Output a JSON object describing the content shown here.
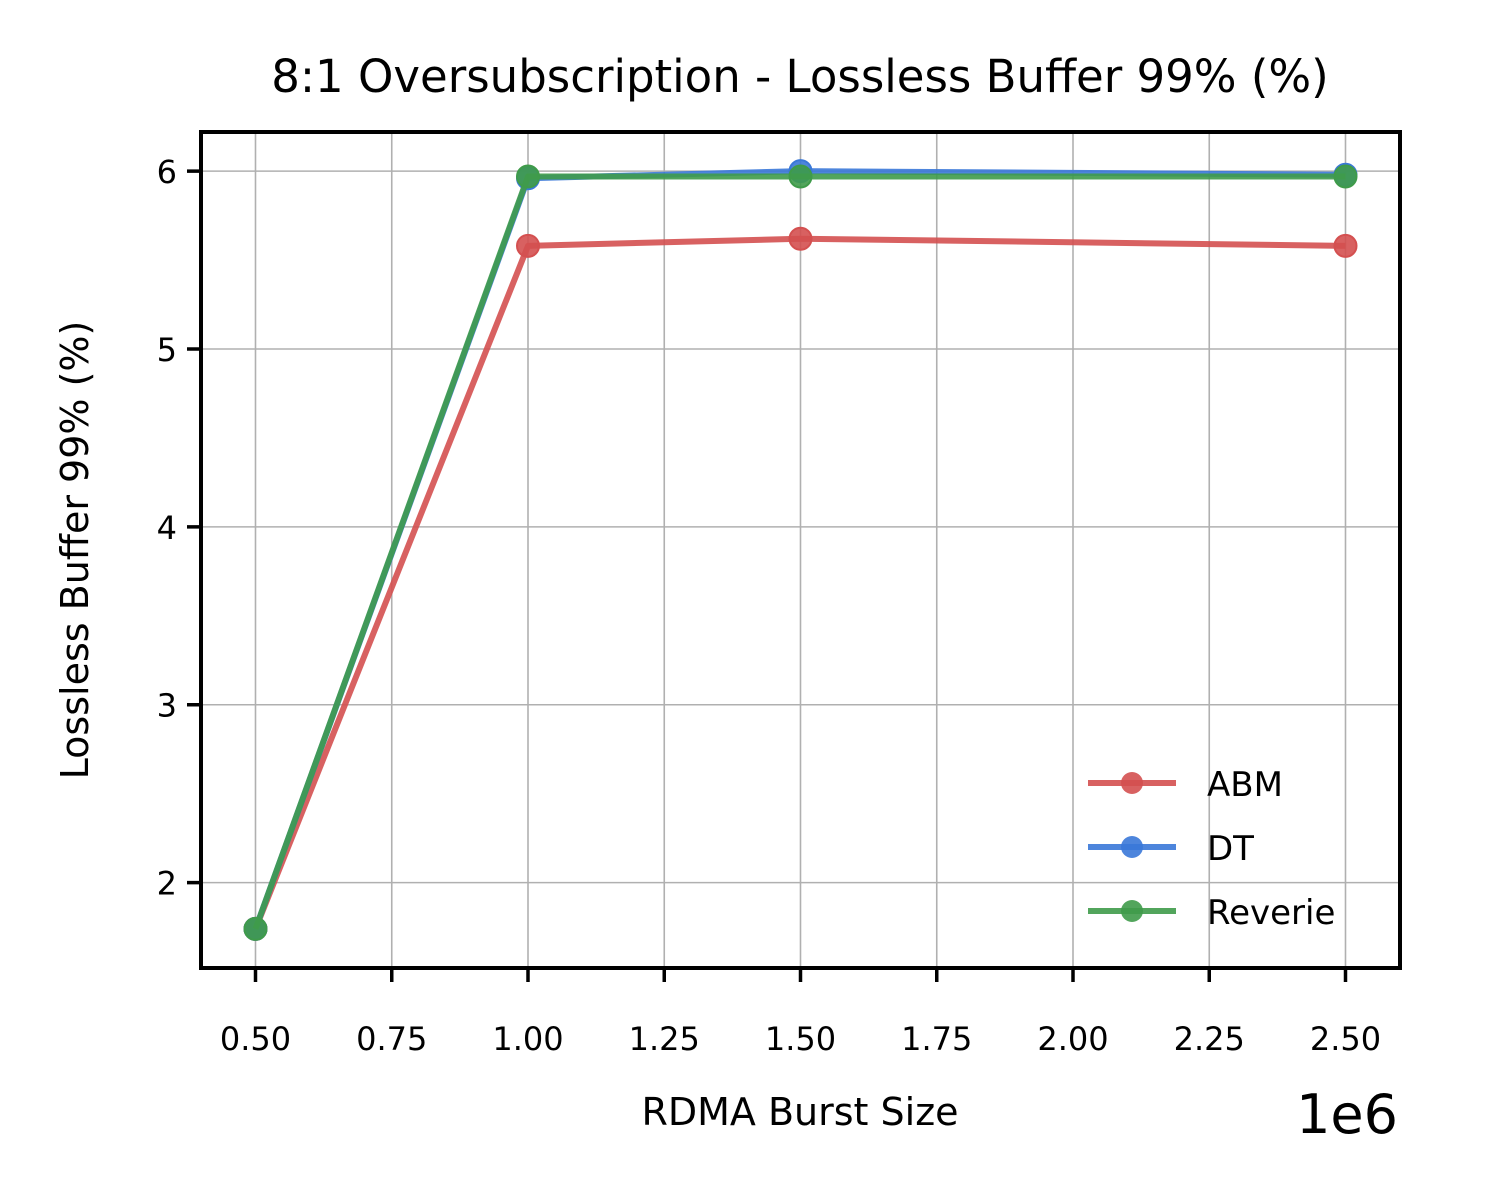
{
  "chart_data": {
    "type": "line",
    "title": "8:1 Oversubscription - Lossless Buffer 99% (%)",
    "xlabel": "RDMA Burst Size",
    "ylabel": "Lossless Buffer 99% (%)",
    "x_offset_text": "1e6",
    "x": [
      0.5,
      1.0,
      1.5,
      2.5
    ],
    "xlim": [
      0.4,
      2.6
    ],
    "ylim": [
      1.52,
      6.22
    ],
    "x_ticks": [
      0.5,
      0.75,
      1.0,
      1.25,
      1.5,
      1.75,
      2.0,
      2.25,
      2.5
    ],
    "x_tick_labels": [
      "0.50",
      "0.75",
      "1.00",
      "1.25",
      "1.50",
      "1.75",
      "2.00",
      "2.25",
      "2.50"
    ],
    "y_ticks": [
      2,
      3,
      4,
      5,
      6
    ],
    "y_tick_labels": [
      "2",
      "3",
      "4",
      "5",
      "6"
    ],
    "grid": true,
    "legend_position": "lower-right",
    "series": [
      {
        "name": "ABM",
        "color": "#d45050",
        "values": [
          1.74,
          5.58,
          5.62,
          5.58
        ]
      },
      {
        "name": "DT",
        "color": "#3a78d8",
        "values": [
          1.74,
          5.96,
          6.0,
          5.98
        ]
      },
      {
        "name": "Reverie",
        "color": "#3f9b4a",
        "values": [
          1.74,
          5.97,
          5.97,
          5.97
        ]
      }
    ]
  }
}
